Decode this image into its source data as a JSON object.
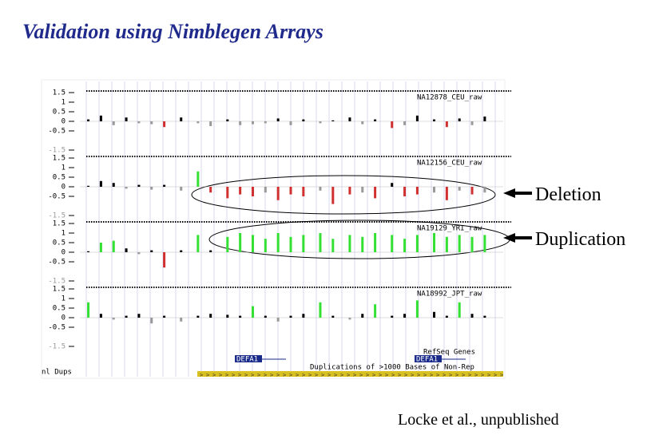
{
  "title": "Validation using Nimblegen Arrays",
  "browser": {
    "x": [
      2,
      5,
      8,
      11,
      14,
      17,
      20,
      24,
      28,
      31,
      35,
      38,
      41,
      44,
      47,
      50,
      53,
      57,
      60,
      64,
      67,
      70,
      74,
      77,
      80,
      84,
      87,
      90,
      93,
      96
    ],
    "xlim": [
      0,
      100
    ],
    "ylim": [
      -1.5,
      1.5
    ],
    "yticks": [
      1.5,
      1,
      0.5,
      0,
      -0.5,
      -1.5
    ],
    "tracks": [
      {
        "name": "NA12878_CEU_raw",
        "values": [
          0.1,
          0.3,
          -0.2,
          0.2,
          -0.1,
          -0.15,
          -0.3,
          0.2,
          -0.1,
          -0.25,
          0.1,
          -0.2,
          -0.15,
          -0.1,
          0.15,
          -0.2,
          0.1,
          -0.1,
          0.05,
          0.2,
          -0.15,
          0.1,
          -0.35,
          -0.2,
          0.3,
          0.1,
          -0.3,
          0.15,
          -0.2,
          0.25
        ],
        "colors": [
          "#000",
          "#000",
          "#999",
          "#000",
          "#999",
          "#999",
          "#d03030",
          "#000",
          "#999",
          "#999",
          "#000",
          "#999",
          "#999",
          "#999",
          "#000",
          "#999",
          "#000",
          "#999",
          "#000",
          "#000",
          "#999",
          "#000",
          "#d03030",
          "#999",
          "#000",
          "#000",
          "#d03030",
          "#000",
          "#999",
          "#000"
        ]
      },
      {
        "name": "NA12156_CEU_raw",
        "values": [
          0.05,
          0.3,
          0.2,
          -0.1,
          0.1,
          -0.15,
          0.1,
          -0.2,
          0.8,
          -0.3,
          -0.6,
          -0.4,
          -0.5,
          -0.3,
          -0.7,
          -0.4,
          -0.5,
          -0.2,
          -0.9,
          -0.4,
          -0.3,
          -0.6,
          0.2,
          -0.5,
          -0.4,
          -0.3,
          -0.7,
          -0.2,
          -0.4,
          -0.3
        ],
        "colors": [
          "#000",
          "#000",
          "#000",
          "#999",
          "#000",
          "#999",
          "#000",
          "#999",
          "#33e033",
          "#d03030",
          "#d03030",
          "#d03030",
          "#d03030",
          "#999",
          "#d03030",
          "#d03030",
          "#d03030",
          "#999",
          "#d03030",
          "#d03030",
          "#999",
          "#d03030",
          "#000",
          "#d03030",
          "#d03030",
          "#999",
          "#d03030",
          "#999",
          "#d03030",
          "#999"
        ]
      },
      {
        "name": "NA19129_YRI_raw",
        "values": [
          0.05,
          0.5,
          0.6,
          0.2,
          -0.1,
          0.1,
          -0.8,
          0.1,
          0.9,
          0.1,
          0.8,
          1.0,
          0.9,
          0.7,
          1.0,
          0.8,
          0.9,
          1.0,
          0.7,
          0.9,
          0.8,
          1.0,
          0.9,
          0.7,
          0.9,
          1.0,
          0.8,
          0.9,
          0.8,
          0.9
        ],
        "colors": [
          "#000",
          "#33e033",
          "#33e033",
          "#000",
          "#999",
          "#000",
          "#d03030",
          "#000",
          "#33e033",
          "#000",
          "#33e033",
          "#33e033",
          "#33e033",
          "#33e033",
          "#33e033",
          "#33e033",
          "#33e033",
          "#33e033",
          "#33e033",
          "#33e033",
          "#33e033",
          "#33e033",
          "#33e033",
          "#33e033",
          "#33e033",
          "#33e033",
          "#33e033",
          "#33e033",
          "#33e033",
          "#33e033"
        ]
      },
      {
        "name": "NA18992_JPT_raw",
        "values": [
          0.8,
          0.2,
          -0.1,
          0.1,
          0.2,
          -0.3,
          0.1,
          -0.2,
          0.1,
          0.2,
          0.15,
          0.1,
          0.6,
          0.1,
          -0.2,
          0.1,
          0.2,
          0.8,
          0.1,
          -0.1,
          0.2,
          0.7,
          0.1,
          0.2,
          0.9,
          0.3,
          0.1,
          0.8,
          0.2,
          0.1
        ],
        "colors": [
          "#33e033",
          "#000",
          "#999",
          "#000",
          "#000",
          "#999",
          "#000",
          "#999",
          "#000",
          "#000",
          "#000",
          "#000",
          "#33e033",
          "#000",
          "#999",
          "#000",
          "#000",
          "#33e033",
          "#000",
          "#999",
          "#000",
          "#33e033",
          "#000",
          "#000",
          "#33e033",
          "#000",
          "#000",
          "#33e033",
          "#000",
          "#000"
        ]
      }
    ],
    "refseq_label": "RefSeq Genes",
    "gene_labels": [
      "DEFA1",
      "DEFA1"
    ],
    "dups_label": "Duplications of >1000 Bases of Non-Rep",
    "side_label": "nl Dups"
  },
  "annotations": {
    "deletion": "Deletion",
    "duplication": "Duplication",
    "credit": "Locke et al., unpublished"
  }
}
